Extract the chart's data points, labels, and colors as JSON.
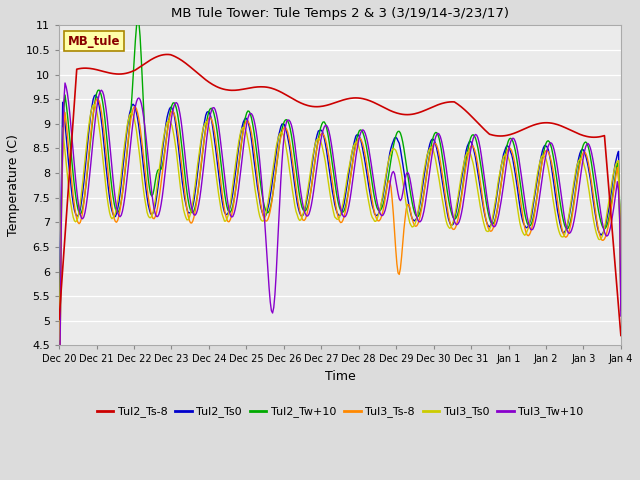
{
  "title": "MB Tule Tower: Tule Temps 2 & 3 (3/19/14-3/23/17)",
  "xlabel": "Time",
  "ylabel": "Temperature (C)",
  "ylim": [
    4.5,
    11.0
  ],
  "yticks": [
    4.5,
    5.0,
    5.5,
    6.0,
    6.5,
    7.0,
    7.5,
    8.0,
    8.5,
    9.0,
    9.5,
    10.0,
    10.5,
    11.0
  ],
  "bg_color": "#dcdcdc",
  "plot_bg_color": "#ebebeb",
  "legend_labels": [
    "Tul2_Ts-8",
    "Tul2_Ts0",
    "Tul2_Tw+10",
    "Tul3_Ts-8",
    "Tul3_Ts0",
    "Tul3_Tw+10"
  ],
  "line_colors": [
    "#cc0000",
    "#0000cc",
    "#00aa00",
    "#ff8800",
    "#cccc00",
    "#8800cc"
  ],
  "annotation_text": "MB_tule",
  "annotation_bg": "#ffffaa",
  "annotation_border": "#aa8800",
  "annotation_text_color": "#880000",
  "xtick_labels": [
    "Dec 20",
    "Dec 21",
    "Dec 22",
    "Dec 23",
    "Dec 24",
    "Dec 25",
    "Dec 26",
    "Dec 27",
    "Dec 28",
    "Dec 29",
    "Dec 30",
    "Dec 31",
    "Jan 1",
    "Jan 2",
    "Jan 3",
    "Jan 4"
  ],
  "num_points": 480
}
